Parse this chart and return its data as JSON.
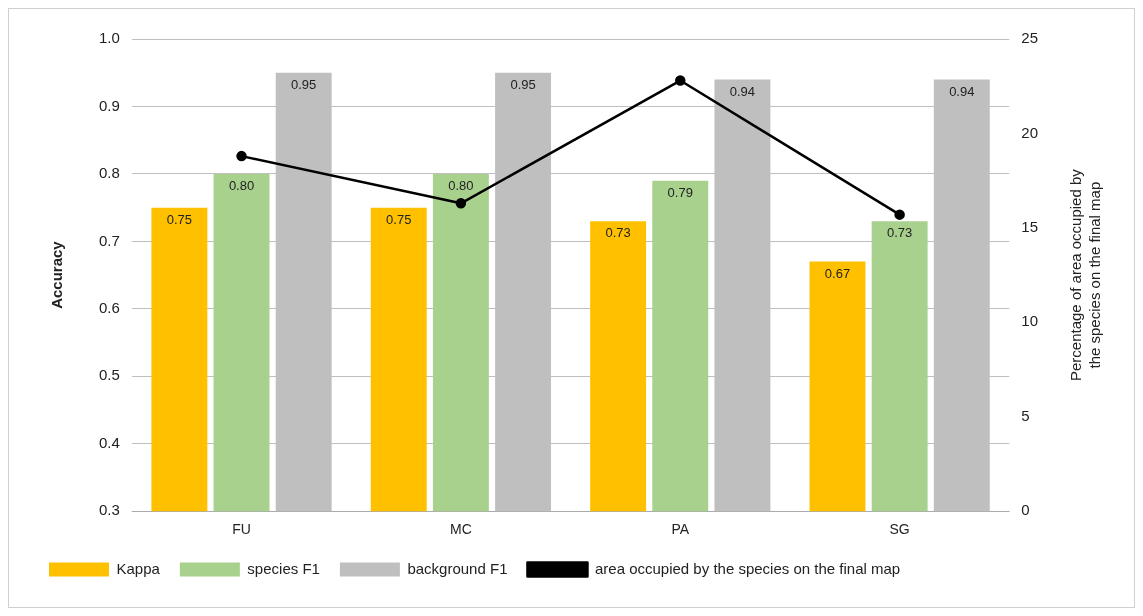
{
  "chart_data": {
    "type": "bar",
    "categories": [
      "FU",
      "MC",
      "PA",
      "SG"
    ],
    "ylabel": "Accuracy",
    "y2label": "Percentage of area occupied by the species on the final map",
    "ylim": [
      0.3,
      1.0
    ],
    "yticks": [
      {
        "value": 0.3,
        "label": "0.3"
      },
      {
        "value": 0.4,
        "label": "0.4"
      },
      {
        "value": 0.5,
        "label": "0.5"
      },
      {
        "value": 0.6,
        "label": "0.6"
      },
      {
        "value": 0.7,
        "label": "0.7"
      },
      {
        "value": 0.8,
        "label": "0.8"
      },
      {
        "value": 0.9,
        "label": "0.9"
      },
      {
        "value": 1.0,
        "label": "1.0"
      }
    ],
    "y2lim": [
      0,
      25
    ],
    "y2ticks": [
      0,
      5,
      10,
      15,
      20,
      25
    ],
    "grid": "y",
    "legend": "bottom",
    "series": [
      {
        "name": "Kappa",
        "color": "#ffc000",
        "values": [
          0.75,
          0.75,
          0.73,
          0.67
        ],
        "value_labels": [
          "0.75",
          "0.75",
          "0.73",
          "0.67"
        ]
      },
      {
        "name": "species F1",
        "color": "#a9d18e",
        "values": [
          0.8,
          0.8,
          0.79,
          0.73
        ],
        "value_labels": [
          "0.80",
          "0.80",
          "0.79",
          "0.73"
        ]
      },
      {
        "name": "background F1",
        "color": "#bfbfbf",
        "values": [
          0.95,
          0.95,
          0.94,
          0.94
        ],
        "value_labels": [
          "0.95",
          "0.95",
          "0.94",
          "0.94"
        ]
      },
      {
        "name": "area occupied by the species on the final map",
        "type": "line",
        "axis": "y2",
        "color": "#000000",
        "marker": "circle",
        "line_style": "solid",
        "values": [
          18.8,
          16.3,
          22.8,
          15.7
        ]
      }
    ]
  }
}
